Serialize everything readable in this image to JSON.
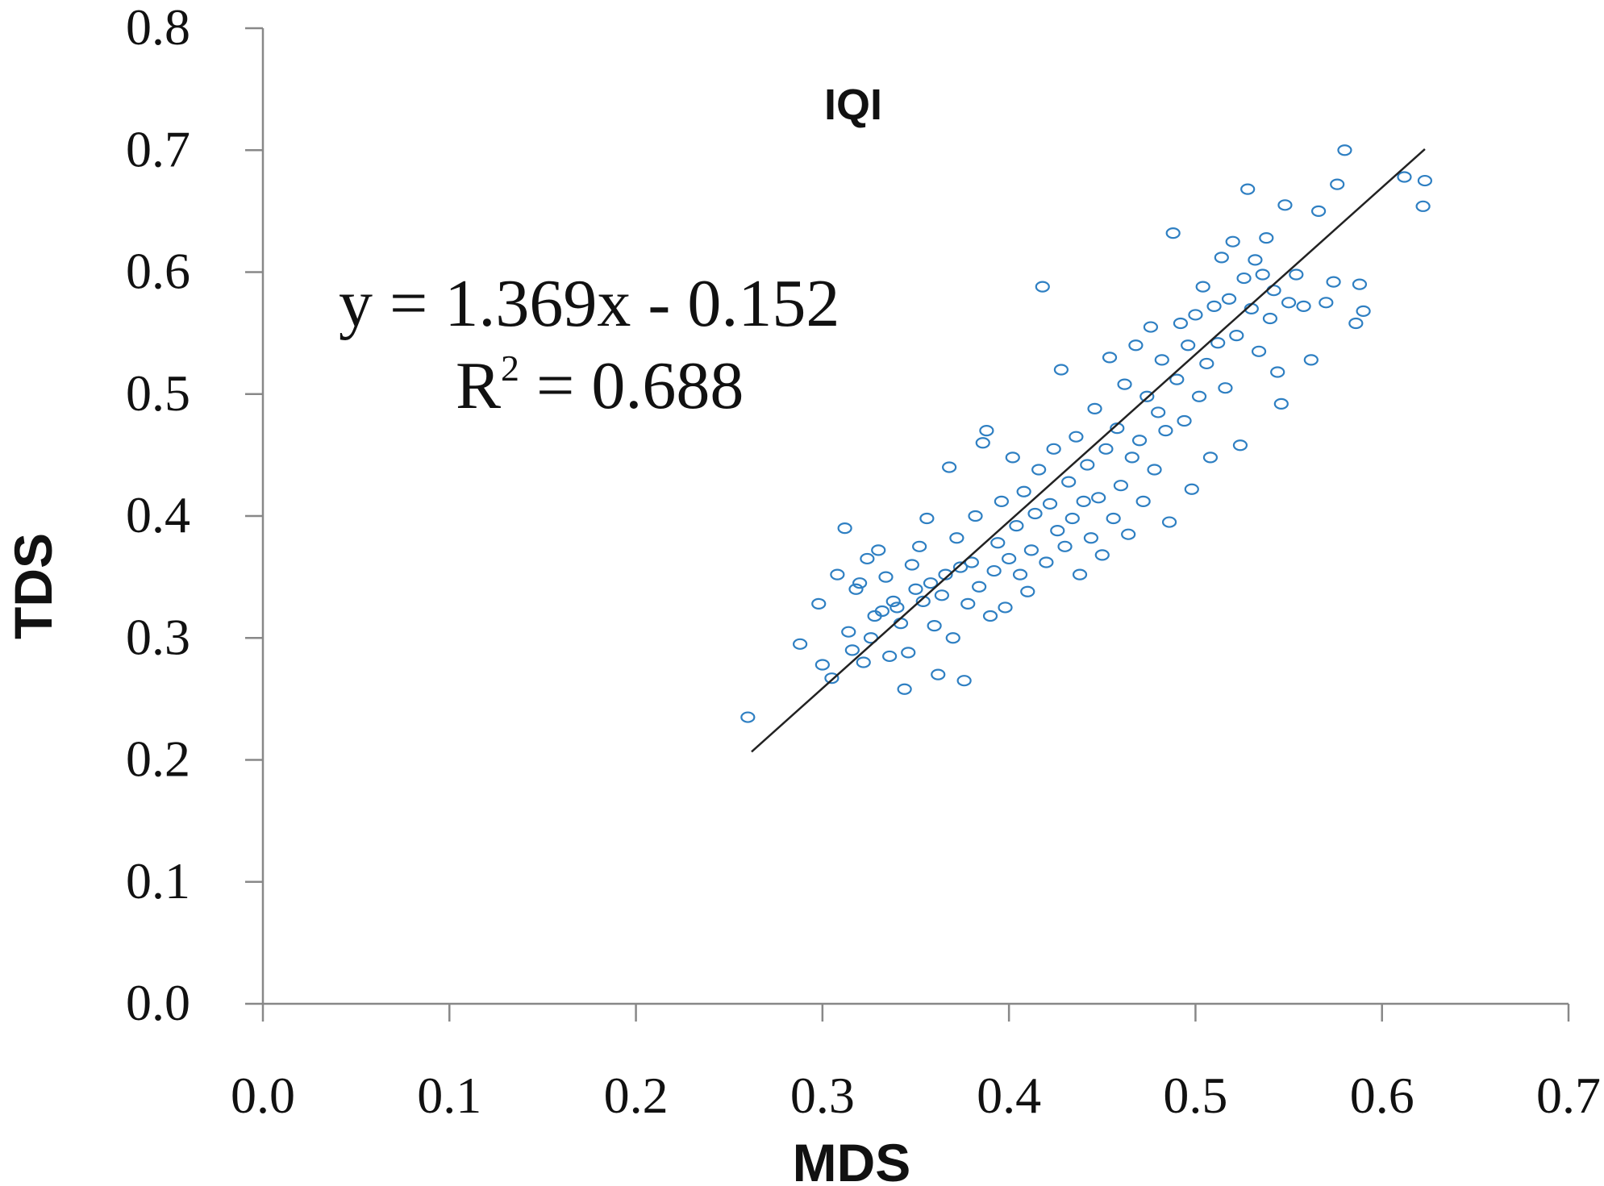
{
  "chart_data": {
    "type": "scatter",
    "title": "IQI",
    "xlabel": "MDS",
    "ylabel": "TDS",
    "xlim": [
      0.0,
      0.7
    ],
    "ylim": [
      0.0,
      0.8
    ],
    "x_ticks": [
      "0.0",
      "0.1",
      "0.2",
      "0.3",
      "0.4",
      "0.5",
      "0.6",
      "0.7"
    ],
    "y_ticks": [
      "0.0",
      "0.1",
      "0.2",
      "0.3",
      "0.4",
      "0.5",
      "0.6",
      "0.7",
      "0.8"
    ],
    "grid": false,
    "legend": "none",
    "marker_color": "#2e7fc2",
    "trendline": {
      "slope": 1.369,
      "intercept": -0.152,
      "x_range": [
        0.262,
        0.623
      ],
      "color": "#222222"
    },
    "annotations": {
      "equation": "y = 1.369x - 0.152",
      "r2_prefix": "R",
      "r2_suffix": " = 0.688"
    },
    "series": [
      {
        "values": [
          [
            0.26,
            0.235
          ],
          [
            0.288,
            0.295
          ],
          [
            0.298,
            0.328
          ],
          [
            0.3,
            0.278
          ],
          [
            0.305,
            0.267
          ],
          [
            0.308,
            0.352
          ],
          [
            0.312,
            0.39
          ],
          [
            0.314,
            0.305
          ],
          [
            0.316,
            0.29
          ],
          [
            0.318,
            0.34
          ],
          [
            0.32,
            0.345
          ],
          [
            0.322,
            0.28
          ],
          [
            0.324,
            0.365
          ],
          [
            0.326,
            0.3
          ],
          [
            0.328,
            0.318
          ],
          [
            0.33,
            0.372
          ],
          [
            0.332,
            0.322
          ],
          [
            0.334,
            0.35
          ],
          [
            0.336,
            0.285
          ],
          [
            0.338,
            0.33
          ],
          [
            0.34,
            0.325
          ],
          [
            0.342,
            0.312
          ],
          [
            0.344,
            0.258
          ],
          [
            0.346,
            0.288
          ],
          [
            0.348,
            0.36
          ],
          [
            0.35,
            0.34
          ],
          [
            0.352,
            0.375
          ],
          [
            0.354,
            0.33
          ],
          [
            0.356,
            0.398
          ],
          [
            0.358,
            0.345
          ],
          [
            0.36,
            0.31
          ],
          [
            0.362,
            0.27
          ],
          [
            0.364,
            0.335
          ],
          [
            0.366,
            0.352
          ],
          [
            0.368,
            0.44
          ],
          [
            0.37,
            0.3
          ],
          [
            0.372,
            0.382
          ],
          [
            0.374,
            0.358
          ],
          [
            0.376,
            0.265
          ],
          [
            0.378,
            0.328
          ],
          [
            0.38,
            0.362
          ],
          [
            0.382,
            0.4
          ],
          [
            0.384,
            0.342
          ],
          [
            0.386,
            0.46
          ],
          [
            0.388,
            0.47
          ],
          [
            0.39,
            0.318
          ],
          [
            0.392,
            0.355
          ],
          [
            0.394,
            0.378
          ],
          [
            0.396,
            0.412
          ],
          [
            0.398,
            0.325
          ],
          [
            0.4,
            0.365
          ],
          [
            0.402,
            0.448
          ],
          [
            0.404,
            0.392
          ],
          [
            0.406,
            0.352
          ],
          [
            0.408,
            0.42
          ],
          [
            0.41,
            0.338
          ],
          [
            0.412,
            0.372
          ],
          [
            0.414,
            0.402
          ],
          [
            0.416,
            0.438
          ],
          [
            0.418,
            0.588
          ],
          [
            0.42,
            0.362
          ],
          [
            0.422,
            0.41
          ],
          [
            0.424,
            0.455
          ],
          [
            0.426,
            0.388
          ],
          [
            0.428,
            0.52
          ],
          [
            0.43,
            0.375
          ],
          [
            0.432,
            0.428
          ],
          [
            0.434,
            0.398
          ],
          [
            0.436,
            0.465
          ],
          [
            0.438,
            0.352
          ],
          [
            0.44,
            0.412
          ],
          [
            0.442,
            0.442
          ],
          [
            0.444,
            0.382
          ],
          [
            0.446,
            0.488
          ],
          [
            0.448,
            0.415
          ],
          [
            0.45,
            0.368
          ],
          [
            0.452,
            0.455
          ],
          [
            0.454,
            0.53
          ],
          [
            0.456,
            0.398
          ],
          [
            0.458,
            0.472
          ],
          [
            0.46,
            0.425
          ],
          [
            0.462,
            0.508
          ],
          [
            0.464,
            0.385
          ],
          [
            0.466,
            0.448
          ],
          [
            0.468,
            0.54
          ],
          [
            0.47,
            0.462
          ],
          [
            0.472,
            0.412
          ],
          [
            0.474,
            0.498
          ],
          [
            0.476,
            0.555
          ],
          [
            0.478,
            0.438
          ],
          [
            0.48,
            0.485
          ],
          [
            0.482,
            0.528
          ],
          [
            0.484,
            0.47
          ],
          [
            0.486,
            0.395
          ],
          [
            0.488,
            0.632
          ],
          [
            0.49,
            0.512
          ],
          [
            0.492,
            0.558
          ],
          [
            0.494,
            0.478
          ],
          [
            0.496,
            0.54
          ],
          [
            0.498,
            0.422
          ],
          [
            0.5,
            0.565
          ],
          [
            0.502,
            0.498
          ],
          [
            0.504,
            0.588
          ],
          [
            0.506,
            0.525
          ],
          [
            0.508,
            0.448
          ],
          [
            0.51,
            0.572
          ],
          [
            0.512,
            0.542
          ],
          [
            0.514,
            0.612
          ],
          [
            0.516,
            0.505
          ],
          [
            0.518,
            0.578
          ],
          [
            0.52,
            0.625
          ],
          [
            0.522,
            0.548
          ],
          [
            0.524,
            0.458
          ],
          [
            0.526,
            0.595
          ],
          [
            0.528,
            0.668
          ],
          [
            0.53,
            0.57
          ],
          [
            0.532,
            0.61
          ],
          [
            0.534,
            0.535
          ],
          [
            0.536,
            0.598
          ],
          [
            0.538,
            0.628
          ],
          [
            0.54,
            0.562
          ],
          [
            0.542,
            0.585
          ],
          [
            0.544,
            0.518
          ],
          [
            0.546,
            0.492
          ],
          [
            0.548,
            0.655
          ],
          [
            0.55,
            0.575
          ],
          [
            0.554,
            0.598
          ],
          [
            0.558,
            0.572
          ],
          [
            0.562,
            0.528
          ],
          [
            0.566,
            0.65
          ],
          [
            0.57,
            0.575
          ],
          [
            0.574,
            0.592
          ],
          [
            0.576,
            0.672
          ],
          [
            0.58,
            0.7
          ],
          [
            0.586,
            0.558
          ],
          [
            0.588,
            0.59
          ],
          [
            0.59,
            0.568
          ],
          [
            0.612,
            0.678
          ],
          [
            0.622,
            0.654
          ],
          [
            0.623,
            0.675
          ]
        ]
      }
    ]
  }
}
